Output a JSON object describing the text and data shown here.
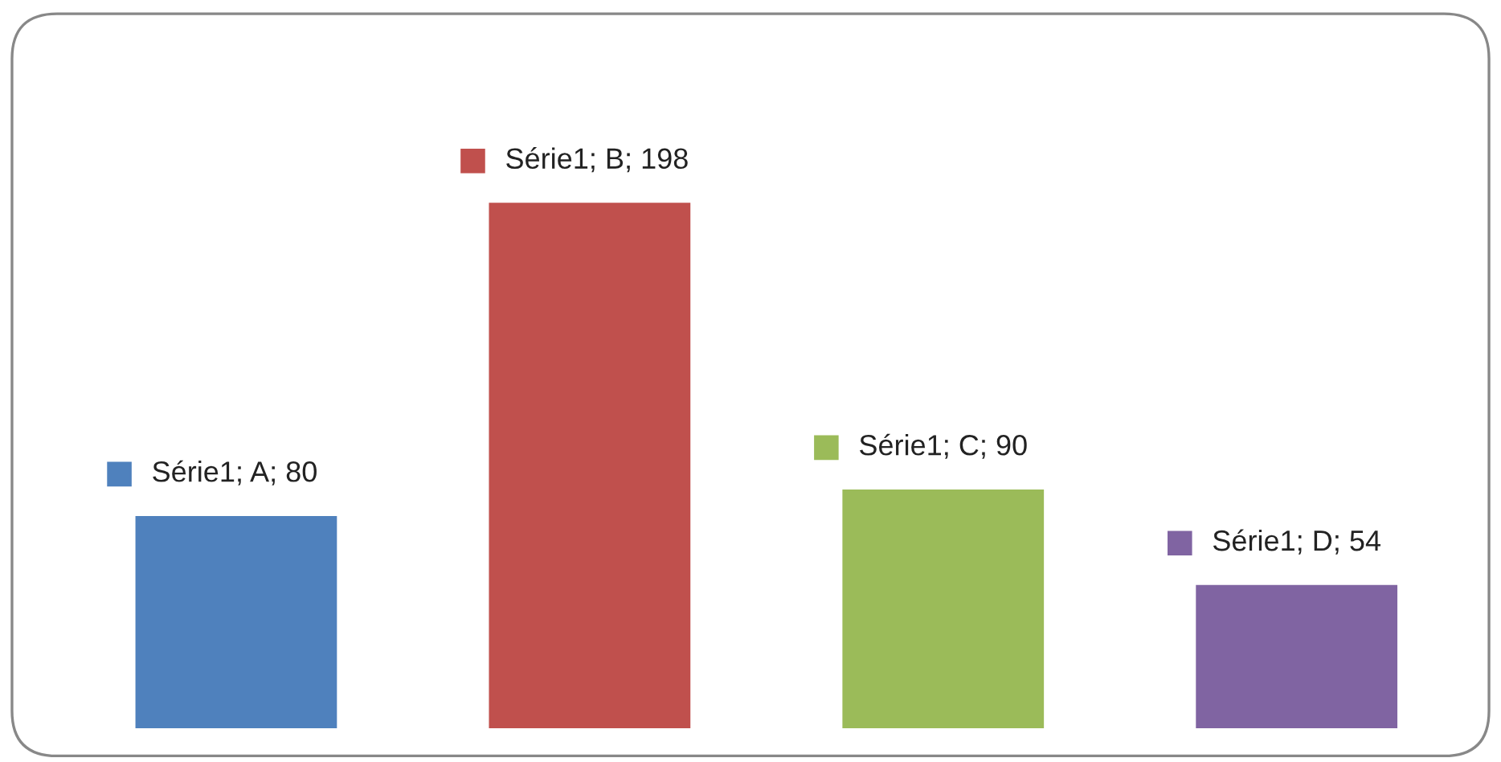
{
  "chart_data": {
    "type": "bar",
    "categories": [
      null,
      null,
      null,
      null
    ],
    "values": [
      80,
      198,
      90,
      54
    ],
    "colors": [
      "#4f81bd",
      "#c0504d",
      "#9bbb59",
      "#8064a2"
    ],
    "value_labels": [
      "Série1; A; 80",
      "Série1; B; 198",
      "Série1; C; 90",
      "Série1; D; 54"
    ],
    "grid": false,
    "legend": false
  }
}
